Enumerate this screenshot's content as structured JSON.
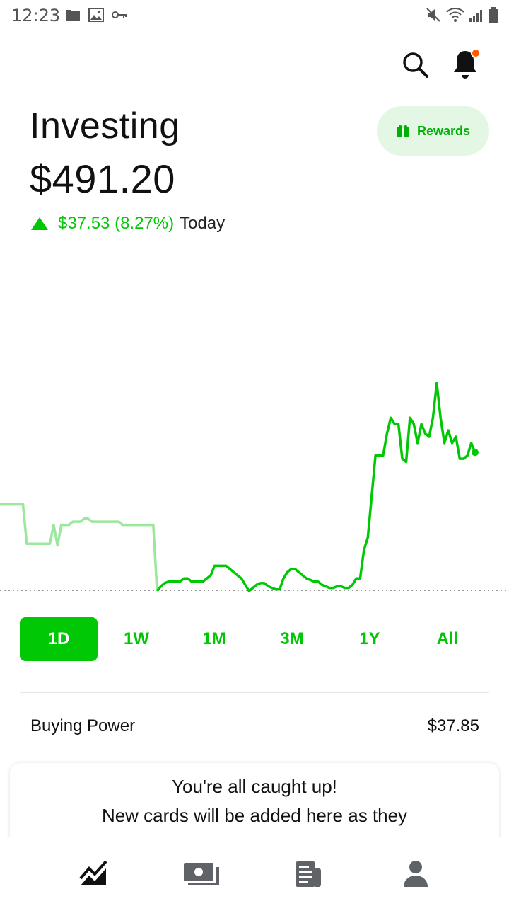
{
  "status_bar": {
    "time": "12:23",
    "left_icons": [
      "folder-icon",
      "image-icon",
      "key-icon"
    ],
    "right_icons": [
      "mute-icon",
      "wifi-icon",
      "signal-icon",
      "battery-icon"
    ]
  },
  "header": {
    "title": "Investing",
    "icons": [
      "search-icon",
      "bell-icon"
    ],
    "notification_dot_color": "#ff5a00"
  },
  "portfolio": {
    "value": "$491.20",
    "change": "$37.53 (8.27%)",
    "change_period": "Today",
    "accent_color": "#00c805"
  },
  "rewards": {
    "label": "Rewards",
    "icon": "gift-icon"
  },
  "chart_data": {
    "type": "line",
    "series": [
      {
        "values": [
          0.725,
          0.725,
          0.725,
          0.725,
          0.725,
          0.725,
          0.725,
          0.85,
          0.85,
          0.85,
          0.85,
          0.85,
          0.85,
          0.85,
          0.79,
          0.855,
          0.79,
          0.79,
          0.79,
          0.78,
          0.78,
          0.78,
          0.77,
          0.77,
          0.78,
          0.78,
          0.78,
          0.78,
          0.78,
          0.78,
          0.78,
          0.78,
          0.79,
          0.79,
          0.79,
          0.79,
          0.79,
          0.79,
          0.79,
          0.79,
          0.79,
          1.0,
          0.985,
          0.975,
          0.97,
          0.97,
          0.97,
          0.97,
          0.96,
          0.96,
          0.97,
          0.97,
          0.97,
          0.97,
          0.96,
          0.95,
          0.92,
          0.92,
          0.92,
          0.92,
          0.93,
          0.94,
          0.95,
          0.96,
          0.98,
          1.0,
          0.99,
          0.98,
          0.975,
          0.975,
          0.985,
          0.99,
          0.995,
          0.995,
          0.96,
          0.94,
          0.93,
          0.93,
          0.94,
          0.95,
          0.96,
          0.965,
          0.97,
          0.97,
          0.98,
          0.985,
          0.99,
          0.99,
          0.985,
          0.985,
          0.99,
          0.99,
          0.98,
          0.96,
          0.96,
          0.87,
          0.83,
          0.7,
          0.57,
          0.57,
          0.57,
          0.5,
          0.45,
          0.47,
          0.47,
          0.58,
          0.59,
          0.45,
          0.47,
          0.53,
          0.47,
          0.5,
          0.51,
          0.45,
          0.34,
          0.45,
          0.53,
          0.49,
          0.53,
          0.51,
          0.58,
          0.58,
          0.57,
          0.53,
          0.56
        ],
        "prior_session_points": 41
      }
    ],
    "baseline": "previous close (dotted)"
  },
  "range_tabs": {
    "items": [
      "1D",
      "1W",
      "1M",
      "3M",
      "1Y",
      "All"
    ],
    "active": "1D"
  },
  "buying_power": {
    "label": "Buying Power",
    "value": "$37.85"
  },
  "cards": {
    "line1": "You're all caught up!",
    "line2": "New cards will be added here as they"
  },
  "bottom_nav": {
    "items": [
      "chart-icon",
      "cash-icon",
      "news-icon",
      "account-icon"
    ],
    "active": "chart-icon"
  }
}
